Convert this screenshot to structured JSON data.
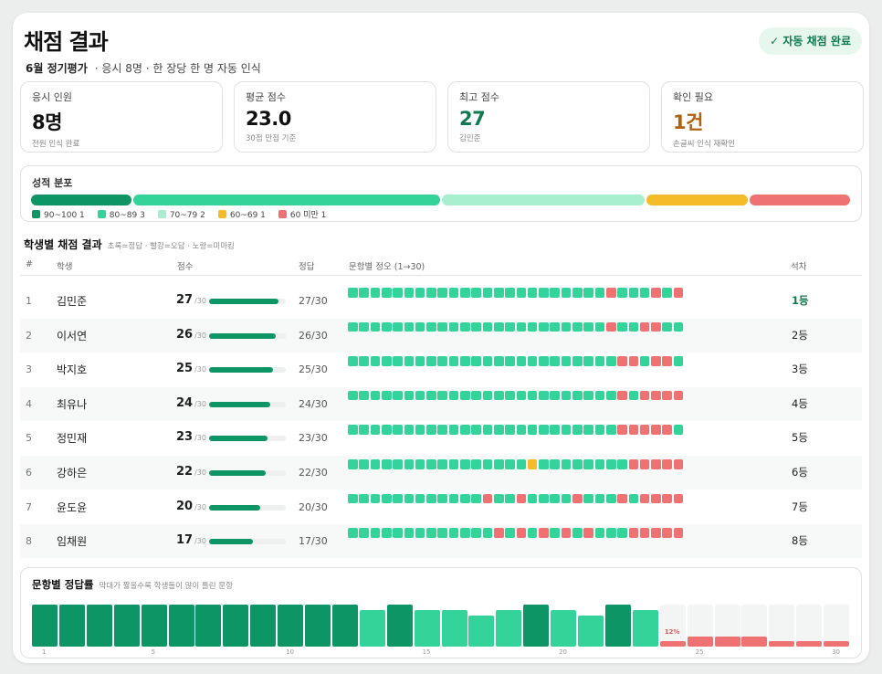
{
  "header": {
    "title": "채점 결과",
    "exam_name": "6월 정기평가",
    "meta": "· 응시 8명 · 한 장당 한 명 자동 인식",
    "status_badge": "✓ 자동 채점 완료"
  },
  "stats": [
    {
      "label": "응시 인원",
      "value": "8명",
      "note": "전원 인식 완료",
      "color": "#111111"
    },
    {
      "label": "평균 점수",
      "value": "23.0",
      "note": "30점 만점 기준",
      "color": "#111111"
    },
    {
      "label": "최고 점수",
      "value": "27",
      "note": "김민준",
      "color": "#0d7a4e"
    },
    {
      "label": "확인 필요",
      "value": "1건",
      "note": "손글씨 인식 재확인",
      "color": "#b0620e"
    }
  ],
  "distribution": {
    "label": "성적 분포",
    "bins": [
      {
        "label": "90~100 1",
        "count": 1,
        "color": "#0d9565"
      },
      {
        "label": "80~89 3",
        "count": 3,
        "color": "#34d399"
      },
      {
        "label": "70~79 2",
        "count": 2,
        "color": "#a7efcf"
      },
      {
        "label": "60~69 1",
        "count": 1,
        "color": "#f5bc2a"
      },
      {
        "label": "60 미만 1",
        "count": 1,
        "color": "#ef7272"
      }
    ]
  },
  "results": {
    "title": "학생별 채점 결과",
    "legend_note": "초록=정답 · 빨강=오답 · 노랑=미마킹",
    "columns": [
      "#",
      "학생",
      "점수",
      "정답",
      "문항별 정오 (1→30)",
      "석차"
    ],
    "max": 30,
    "students": [
      {
        "idx": "1",
        "name": "김민준",
        "score": "27",
        "of": "/30",
        "correct": "27/30",
        "rank": "1등",
        "answers": "OOOOOOOOOOOOOOOOOOOOOOOXOOOXOX"
      },
      {
        "idx": "2",
        "name": "이서연",
        "score": "26",
        "of": "/30",
        "correct": "26/30",
        "rank": "2등",
        "answers": "OOOOOOOOOOOOOOOOOOOOOOOXOOXXOO"
      },
      {
        "idx": "3",
        "name": "박지호",
        "score": "25",
        "of": "/30",
        "correct": "25/30",
        "rank": "3등",
        "answers": "OOOOOOOOOOOOOOOOOOOOOOOOXXOXXO"
      },
      {
        "idx": "4",
        "name": "최유나",
        "score": "24",
        "of": "/30",
        "correct": "24/30",
        "rank": "4등",
        "answers": "OOOOOOOOOOOOOOOOOOOOOOOOXOXXXX"
      },
      {
        "idx": "5",
        "name": "정민재",
        "score": "23",
        "of": "/30",
        "correct": "23/30",
        "rank": "5등",
        "answers": "OOOOOOOOOOOOOOOOOOOOOOOOXXXXXO"
      },
      {
        "idx": "6",
        "name": "강하은",
        "score": "22",
        "of": "/30",
        "correct": "22/30",
        "rank": "6등",
        "answers": "OOOOOOOOOOOOOOOO-OOOOOOOOXXXXX"
      },
      {
        "idx": "7",
        "name": "윤도윤",
        "score": "20",
        "of": "/30",
        "correct": "20/30",
        "rank": "7등",
        "answers": "OOOOOOOOOOOOXOOXOOOOXOOOXOXXXX"
      },
      {
        "idx": "8",
        "name": "임채원",
        "score": "17",
        "of": "/30",
        "correct": "17/30",
        "rank": "8등",
        "answers": "OOOOOOOOOOOOOXOXOXOXOXOOOXXXXX"
      }
    ]
  },
  "accuracy": {
    "title": "문항별 정답률",
    "note": "막대가 짧을수록 학생들이 많이 틀린 문항",
    "highlight_label": "12%",
    "ticks": [
      "1",
      "5",
      "10",
      "15",
      "20",
      "25",
      "30"
    ],
    "values": [
      100,
      100,
      100,
      100,
      100,
      100,
      100,
      100,
      100,
      100,
      100,
      100,
      88,
      100,
      88,
      88,
      75,
      88,
      100,
      88,
      75,
      100,
      88,
      12,
      25,
      25,
      25,
      12,
      12,
      12
    ],
    "colors": {
      "full": "#0d9565",
      "high": "#34d399",
      "low": "#ef7272"
    }
  },
  "colors": {
    "correct": "#34d399",
    "wrong": "#ef7272",
    "blank": "#f5bc2a"
  }
}
